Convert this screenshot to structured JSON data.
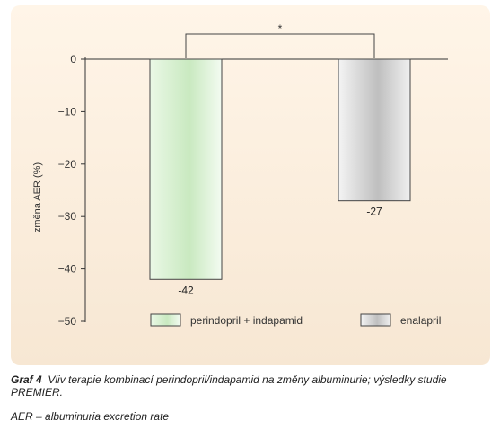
{
  "chart_data": {
    "type": "bar",
    "categories": [
      "perindopril + indapamid",
      "enalapril"
    ],
    "values": [
      -42,
      -27
    ],
    "data_labels": [
      "-42",
      "-27"
    ],
    "ylabel": "změna AER (%)",
    "ylim": [
      -50,
      0
    ],
    "yticks": [
      0,
      -10,
      -20,
      -30,
      -40,
      -50
    ],
    "ytick_labels": [
      "0",
      "−10",
      "−20",
      "−30",
      "−40",
      "−50"
    ],
    "significance_marker": "*",
    "grid": false,
    "legend_position": "bottom",
    "colors": {
      "perindopril + indapamid": "#cdebc4",
      "enalapril": "#c4c4c4",
      "panel_background": "#f9ecdc"
    }
  },
  "caption": {
    "label": "Graf 4",
    "text": "Vliv terapie kombinací perindopril/indapamid na změny albuminurie; výsledky studie PREMIER."
  },
  "footnote": "AER – albuminuria excretion rate"
}
